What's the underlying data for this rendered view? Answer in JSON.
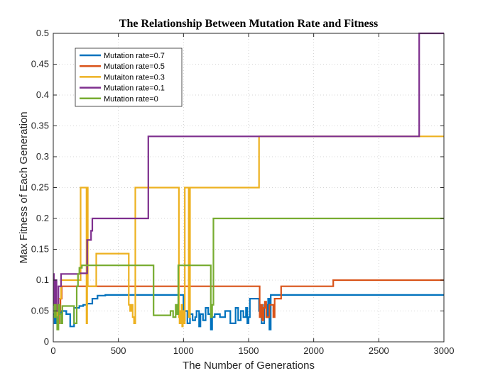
{
  "chart_data": {
    "type": "line",
    "title": "The Relationship Between Mutation Rate and Fitness",
    "xlabel": "The Number of Generations",
    "ylabel": "Max Fitness of Each Generation",
    "xlim": [
      0,
      3000
    ],
    "ylim": [
      0,
      0.5
    ],
    "xticks": [
      0,
      500,
      1000,
      1500,
      2000,
      2500,
      3000
    ],
    "yticks": [
      0,
      0.05,
      0.1,
      0.15,
      0.2,
      0.25,
      0.3,
      0.35,
      0.4,
      0.45,
      0.5
    ],
    "grid": true,
    "legend_position": "top-left",
    "series": [
      {
        "name": "Mutation rate=0.7",
        "color": "#0072BD",
        "step": true,
        "x": [
          0,
          10,
          20,
          30,
          60,
          100,
          130,
          160,
          200,
          230,
          260,
          300,
          340,
          400,
          600,
          960,
          1000,
          1010,
          1030,
          1050,
          1070,
          1090,
          1100,
          1120,
          1130,
          1150,
          1170,
          1190,
          1210,
          1220,
          1240,
          1280,
          1320,
          1360,
          1400,
          1420,
          1440,
          1460,
          1480,
          1490,
          1500,
          1510,
          1530,
          1560,
          1580,
          1600,
          1620,
          1640,
          1650,
          1660,
          1670,
          3000
        ],
        "y": [
          0.045,
          0.03,
          0.05,
          0.045,
          0.05,
          0.045,
          0.025,
          0.055,
          0.058,
          0.06,
          0.062,
          0.07,
          0.075,
          0.076,
          0.076,
          0.076,
          0.035,
          0.05,
          0.03,
          0.045,
          0.035,
          0.04,
          0.05,
          0.025,
          0.045,
          0.035,
          0.055,
          0.045,
          0.02,
          0.04,
          0.045,
          0.04,
          0.05,
          0.03,
          0.055,
          0.035,
          0.05,
          0.04,
          0.055,
          0.03,
          0.04,
          0.07,
          0.07,
          0.07,
          0.05,
          0.03,
          0.06,
          0.04,
          0.07,
          0.02,
          0.076,
          0.076
        ]
      },
      {
        "name": "Mutation rate=0.5",
        "color": "#D95319",
        "step": true,
        "x": [
          0,
          5,
          15,
          25,
          35,
          45,
          55,
          65,
          80,
          120,
          400,
          800,
          1200,
          1580,
          1585,
          1595,
          1605,
          1615,
          1625,
          1635,
          1660,
          1690,
          1700,
          1720,
          1750,
          2100,
          2140,
          2150,
          3000
        ],
        "y": [
          0.1,
          0.06,
          0.05,
          0.04,
          0.03,
          0.05,
          0.07,
          0.09,
          0.09,
          0.09,
          0.09,
          0.09,
          0.09,
          0.09,
          0.04,
          0.06,
          0.035,
          0.055,
          0.065,
          0.04,
          0.06,
          0.04,
          0.07,
          0.07,
          0.09,
          0.09,
          0.09,
          0.1,
          0.1
        ]
      },
      {
        "name": "Mutaiton rate=0.3",
        "color": "#EDB120",
        "step": true,
        "x": [
          0,
          10,
          20,
          30,
          40,
          60,
          80,
          120,
          180,
          200,
          210,
          250,
          255,
          260,
          265,
          270,
          290,
          320,
          330,
          570,
          580,
          590,
          600,
          610,
          620,
          630,
          960,
          965,
          970,
          975,
          980,
          985,
          990,
          995,
          1000,
          1010,
          1040,
          1050,
          1570,
          1580,
          3000
        ],
        "y": [
          0.1,
          0.085,
          0.06,
          0.04,
          0.07,
          0.1,
          0.1,
          0.1,
          0.1,
          0.1,
          0.25,
          0.25,
          0.03,
          0.25,
          0.09,
          0.09,
          0.09,
          0.09,
          0.143,
          0.143,
          0.06,
          0.05,
          0.06,
          0.04,
          0.03,
          0.25,
          0.25,
          0.04,
          0.03,
          0.05,
          0.03,
          0.06,
          0.025,
          0.05,
          0.03,
          0.25,
          0.04,
          0.25,
          0.25,
          0.333,
          0.333
        ]
      },
      {
        "name": "Mutation rate=0.1",
        "color": "#7E2F8E",
        "step": true,
        "x": [
          0,
          5,
          15,
          25,
          40,
          60,
          200,
          260,
          290,
          300,
          720,
          730,
          2800,
          2810,
          3000
        ],
        "y": [
          0.11,
          0.06,
          0.1,
          0.05,
          0.09,
          0.11,
          0.111,
          0.165,
          0.18,
          0.2,
          0.2,
          0.333,
          0.333,
          0.5,
          0.5
        ]
      },
      {
        "name": "Mutation rate=0",
        "color": "#77AC30",
        "step": true,
        "x": [
          0,
          10,
          15,
          20,
          30,
          40,
          50,
          60,
          70,
          100,
          140,
          160,
          180,
          190,
          200,
          220,
          260,
          300,
          420,
          460,
          560,
          620,
          760,
          770,
          900,
          920,
          940,
          950,
          960,
          980,
          1000,
          1020,
          1200,
          1210,
          1220,
          1230,
          1240,
          3000
        ],
        "y": [
          0.06,
          0.04,
          0.06,
          0.04,
          0.02,
          0.06,
          0.045,
          0.03,
          0.058,
          0.058,
          0.058,
          0.03,
          0.09,
          0.11,
          0.12,
          0.124,
          0.124,
          0.124,
          0.124,
          0.124,
          0.124,
          0.124,
          0.124,
          0.043,
          0.05,
          0.04,
          0.06,
          0.045,
          0.124,
          0.124,
          0.124,
          0.124,
          0.124,
          0.04,
          0.06,
          0.2,
          0.2,
          0.2
        ]
      }
    ]
  }
}
